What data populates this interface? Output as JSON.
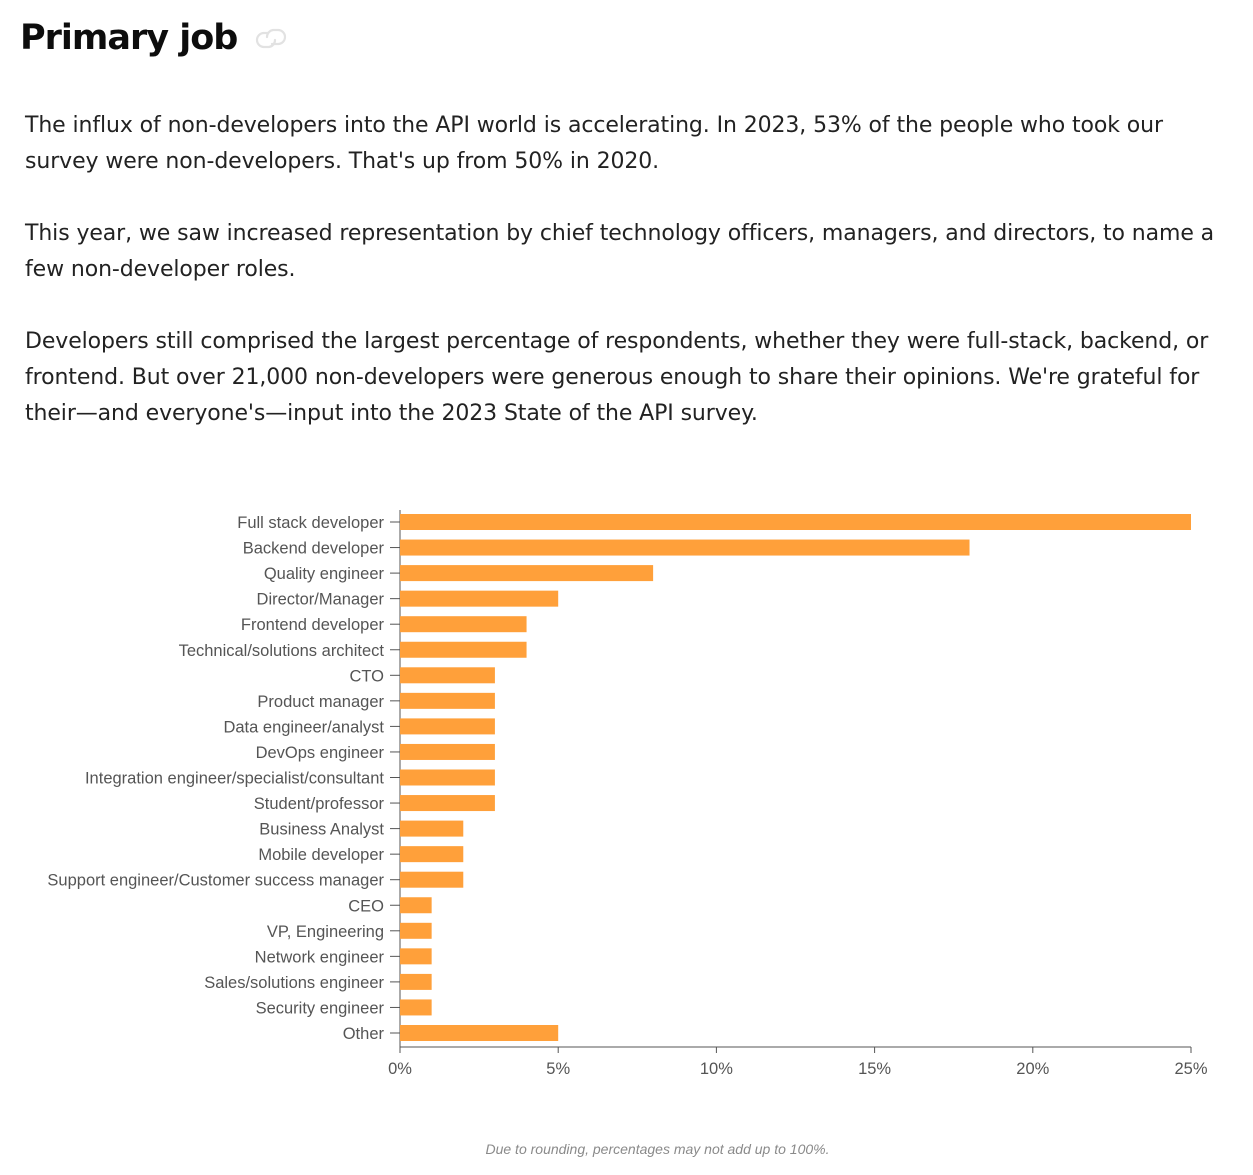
{
  "header": {
    "title": "Primary job",
    "link_icon": "link-icon"
  },
  "intro": {
    "paragraph_1": "The influx of non-developers into the API world is accelerating. In 2023, 53% of the people who took our survey were non-developers. That's up from 50% in 2020.",
    "paragraph_2": "This year, we saw increased representation by chief technology officers, managers, and directors, to name a few non-developer roles.",
    "paragraph_3": "Developers still comprised the largest percentage of respondents, whether they were full-stack, backend, or frontend. But over 21,000 non-developers were generous enough to share their opinions. We're grateful for their—and everyone's—input into the 2023 State of the API survey."
  },
  "colors": {
    "bar": "#ffa03a",
    "axis": "#555555"
  },
  "chart_data": {
    "type": "bar",
    "orientation": "horizontal",
    "title": "Primary job",
    "xlabel": "",
    "ylabel": "",
    "categories": [
      "Full stack developer",
      "Backend developer",
      "Quality engineer",
      "Director/Manager",
      "Frontend developer",
      "Technical/solutions architect",
      "CTO",
      "Product manager",
      "Data engineer/analyst",
      "DevOps engineer",
      "Integration engineer/specialist/consultant",
      "Student/professor",
      "Business Analyst",
      "Mobile developer",
      "Support engineer/Customer success manager",
      "CEO",
      "VP, Engineering",
      "Network engineer",
      "Sales/solutions engineer",
      "Security engineer",
      "Other"
    ],
    "values": [
      25,
      18,
      8,
      5,
      4,
      4,
      3,
      3,
      3,
      3,
      3,
      3,
      2,
      2,
      2,
      1,
      1,
      1,
      1,
      1,
      5
    ],
    "xlim": [
      0,
      25
    ],
    "xticks": [
      0,
      5,
      10,
      15,
      20,
      25
    ],
    "xtick_labels": [
      "0%",
      "5%",
      "10%",
      "15%",
      "20%",
      "25%"
    ],
    "grid": false
  },
  "footnote": "Due to rounding, percentages may not add up to 100%."
}
